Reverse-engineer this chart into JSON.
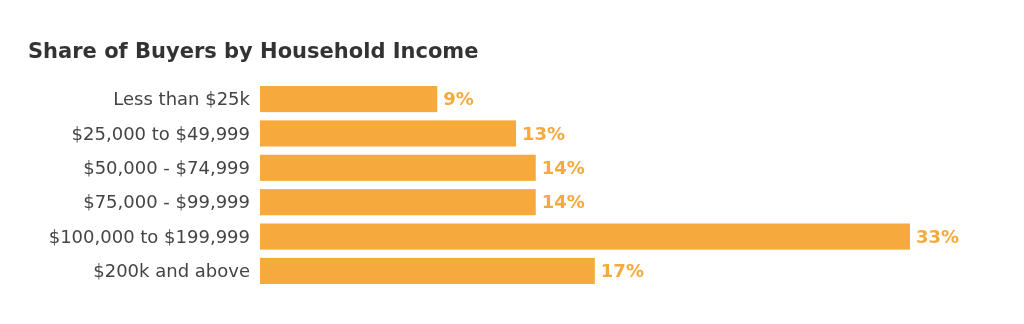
{
  "chart_data": {
    "type": "bar",
    "orientation": "horizontal",
    "title": "Share of Buyers by Household Income",
    "categories": [
      "Less than $25k",
      "$25,000 to $49,999",
      "$50,000 - $74,999",
      "$75,000 - $99,999",
      "$100,000 to $199,999",
      "$200k and above"
    ],
    "values": [
      9,
      13,
      14,
      14,
      33,
      17
    ],
    "value_labels": [
      "9%",
      "13%",
      "14%",
      "14%",
      "33%",
      "17%"
    ],
    "color": "#f7aa3c"
  }
}
